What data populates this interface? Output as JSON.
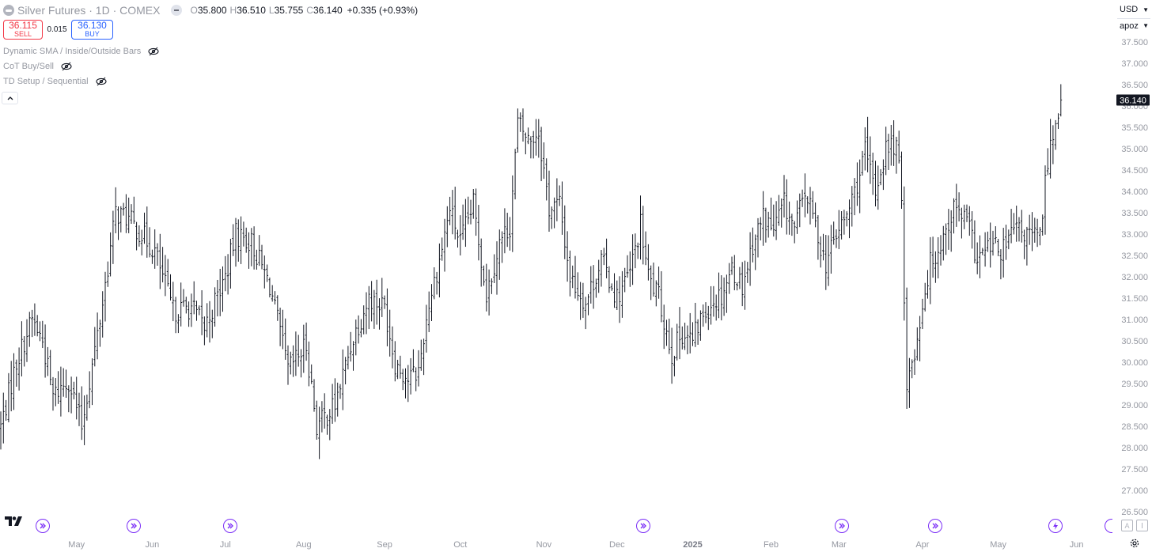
{
  "header": {
    "title": "Silver Futures · 1D · COMEX",
    "ohlc": {
      "o_label": "O",
      "o": "35.800",
      "h_label": "H",
      "h": "36.510",
      "l_label": "L",
      "l": "35.755",
      "c_label": "C",
      "c": "36.140",
      "change": "+0.335 (+0.93%)"
    }
  },
  "trade": {
    "sell_price": "36.115",
    "sell_label": "SELL",
    "spread": "0.015",
    "buy_price": "36.130",
    "buy_label": "BUY"
  },
  "indicators": [
    {
      "name": "Dynamic SMA / Inside/Outside Bars",
      "icon": "eye-crossed-icon"
    },
    {
      "name": "CoT Buy/Sell",
      "icon": "eye-crossed-icon"
    },
    {
      "name": "TD Setup / Sequential",
      "icon": "eye-crossed-icon"
    }
  ],
  "axis_controls": {
    "currency": "USD",
    "unit": "apoz"
  },
  "chart_data": {
    "type": "ohlc-bar",
    "symbol": "Silver Futures",
    "interval": "1D",
    "exchange": "COMEX",
    "ylim": [
      26.2,
      38.0
    ],
    "y_ticks": [
      "26.500",
      "27.000",
      "27.500",
      "28.000",
      "28.500",
      "29.000",
      "29.500",
      "30.000",
      "30.500",
      "31.000",
      "31.500",
      "32.000",
      "32.500",
      "33.000",
      "33.500",
      "34.000",
      "34.500",
      "35.000",
      "35.500",
      "36.000",
      "36.500",
      "37.000",
      "37.500"
    ],
    "x_ticks": [
      {
        "label": "May",
        "bar": 29
      },
      {
        "label": "Jun",
        "bar": 58
      },
      {
        "label": "Jul",
        "bar": 86
      },
      {
        "label": "Aug",
        "bar": 116
      },
      {
        "label": "Sep",
        "bar": 147
      },
      {
        "label": "Oct",
        "bar": 176
      },
      {
        "label": "Nov",
        "bar": 208
      },
      {
        "label": "Dec",
        "bar": 236
      },
      {
        "label": "2025",
        "bar": 265,
        "bold": true
      },
      {
        "label": "Feb",
        "bar": 295
      },
      {
        "label": "Mar",
        "bar": 321
      },
      {
        "label": "Apr",
        "bar": 353
      },
      {
        "label": "May",
        "bar": 382
      },
      {
        "label": "Jun",
        "bar": 412
      }
    ],
    "last_price": "36.140",
    "anchors": [
      [
        0,
        28.5
      ],
      [
        6,
        30.0
      ],
      [
        12,
        31.0
      ],
      [
        16,
        30.5
      ],
      [
        20,
        29.2
      ],
      [
        26,
        29.6
      ],
      [
        31,
        28.5
      ],
      [
        38,
        31.0
      ],
      [
        44,
        33.5
      ],
      [
        48,
        33.4
      ],
      [
        54,
        33.0
      ],
      [
        59,
        32.6
      ],
      [
        66,
        31.2
      ],
      [
        73,
        31.3
      ],
      [
        78,
        30.8
      ],
      [
        86,
        32.0
      ],
      [
        90,
        33.0
      ],
      [
        96,
        32.8
      ],
      [
        103,
        31.8
      ],
      [
        110,
        29.8
      ],
      [
        117,
        30.4
      ],
      [
        121,
        28.5
      ],
      [
        128,
        29.0
      ],
      [
        135,
        30.6
      ],
      [
        141,
        31.5
      ],
      [
        147,
        31.3
      ],
      [
        151,
        30.0
      ],
      [
        156,
        29.6
      ],
      [
        160,
        29.8
      ],
      [
        164,
        31.4
      ],
      [
        168,
        32.4
      ],
      [
        172,
        33.6
      ],
      [
        176,
        32.8
      ],
      [
        181,
        33.7
      ],
      [
        186,
        31.6
      ],
      [
        191,
        32.8
      ],
      [
        195,
        33.2
      ],
      [
        198,
        35.6
      ],
      [
        202,
        35.2
      ],
      [
        206,
        35.4
      ],
      [
        210,
        33.6
      ],
      [
        214,
        33.7
      ],
      [
        218,
        32.0
      ],
      [
        224,
        31.4
      ],
      [
        230,
        32.4
      ],
      [
        236,
        31.5
      ],
      [
        241,
        32.1
      ],
      [
        245,
        33.2
      ],
      [
        248,
        32.0
      ],
      [
        252,
        31.5
      ],
      [
        257,
        30.2
      ],
      [
        261,
        30.7
      ],
      [
        265,
        30.5
      ],
      [
        268,
        31.0
      ],
      [
        272,
        31.4
      ],
      [
        276,
        31.6
      ],
      [
        280,
        32.2
      ],
      [
        284,
        31.8
      ],
      [
        288,
        32.8
      ],
      [
        292,
        33.4
      ],
      [
        296,
        33.1
      ],
      [
        300,
        33.7
      ],
      [
        304,
        33.1
      ],
      [
        308,
        34.0
      ],
      [
        312,
        33.2
      ],
      [
        316,
        32.3
      ],
      [
        320,
        33.0
      ],
      [
        324,
        33.4
      ],
      [
        328,
        34.2
      ],
      [
        331,
        34.9
      ],
      [
        335,
        34.0
      ],
      [
        339,
        35.0
      ],
      [
        343,
        35.1
      ],
      [
        345,
        33.8
      ],
      [
        347,
        29.5
      ],
      [
        350,
        30.2
      ],
      [
        353,
        31.4
      ],
      [
        356,
        32.3
      ],
      [
        360,
        32.8
      ],
      [
        365,
        33.6
      ],
      [
        370,
        33.3
      ],
      [
        374,
        32.4
      ],
      [
        379,
        32.7
      ],
      [
        384,
        32.6
      ],
      [
        388,
        33.1
      ],
      [
        392,
        33.0
      ],
      [
        398,
        32.9
      ],
      [
        401,
        34.8
      ],
      [
        404,
        35.6
      ],
      [
        406,
        36.14
      ]
    ],
    "events": [
      {
        "bar": 16,
        "icon": "dividend-icon"
      },
      {
        "bar": 51,
        "icon": "dividend-icon"
      },
      {
        "bar": 88,
        "icon": "dividend-icon"
      },
      {
        "bar": 246,
        "icon": "dividend-icon"
      },
      {
        "bar": 322,
        "icon": "dividend-icon"
      },
      {
        "bar": 358,
        "icon": "dividend-icon"
      },
      {
        "bar": 404,
        "icon": "split-icon"
      }
    ]
  }
}
